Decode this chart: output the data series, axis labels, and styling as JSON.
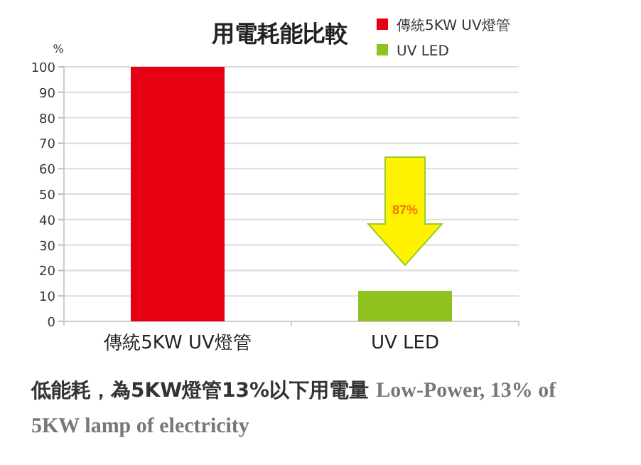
{
  "chart_data": {
    "type": "bar",
    "title": "用電耗能比較",
    "ylabel": "%",
    "categories": [
      "傳統5KW UV燈管",
      "UV LED"
    ],
    "series": [
      {
        "name": "傳統5KW UV燈管",
        "color": "#e60012",
        "values": [
          100,
          null
        ]
      },
      {
        "name": "UV LED",
        "color": "#8dc21f",
        "values": [
          null,
          12
        ]
      }
    ],
    "ylim": [
      0,
      100
    ],
    "yticks": [
      0,
      10,
      20,
      30,
      40,
      50,
      60,
      70,
      80,
      90,
      100
    ],
    "grid": "y",
    "legend": "top right",
    "annotations": [
      "87%",
      "低能耗，為5KW燈管13%以下用電量",
      "Low-Power, 13% of 5KW lamp of electricity"
    ]
  }
}
